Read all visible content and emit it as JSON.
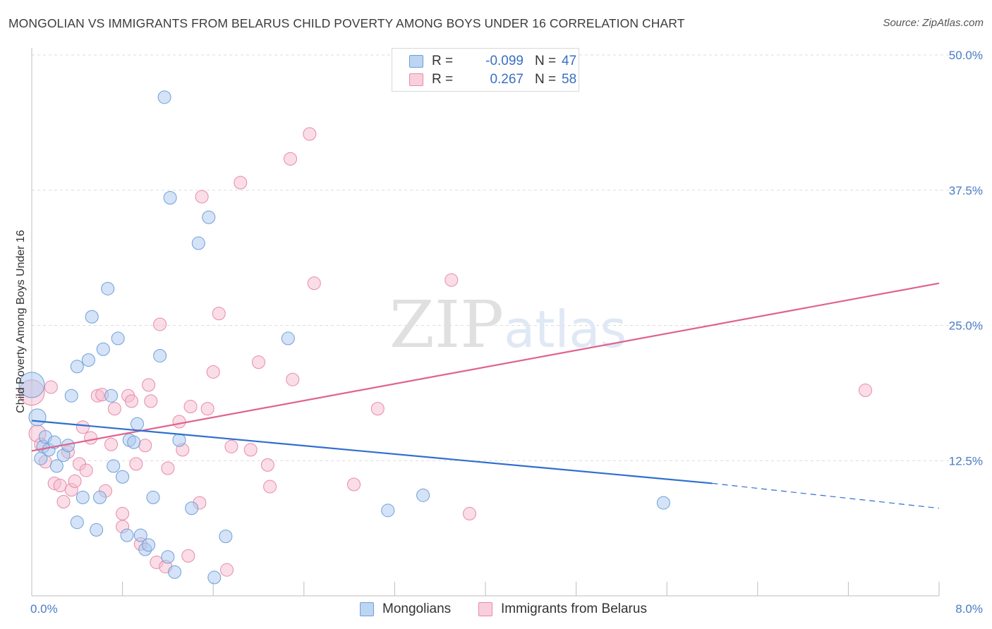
{
  "title": "MONGOLIAN VS IMMIGRANTS FROM BELARUS CHILD POVERTY AMONG BOYS UNDER 16 CORRELATION CHART",
  "source": "Source: ZipAtlas.com",
  "watermark": "ZIPatlas",
  "colors": {
    "blue_fill": "#a9c8ef",
    "blue_stroke": "#6f9fd8",
    "blue_line": "#2f6fcf",
    "pink_fill": "#f5bccd",
    "pink_stroke": "#e88aa8",
    "pink_line": "#e0628e",
    "tick_text": "#4a7cc7"
  },
  "legend_top": {
    "rows": [
      {
        "r_label": "R =",
        "r_value": "-0.099",
        "n_label": "N =",
        "n_value": "47"
      },
      {
        "r_label": "R =",
        "r_value": "0.267",
        "n_label": "N =",
        "n_value": "58"
      }
    ]
  },
  "legend_bottom": {
    "items": [
      {
        "label": "Mongolians"
      },
      {
        "label": "Immigrants from Belarus"
      }
    ]
  },
  "chart_data": {
    "type": "scatter",
    "title": "MONGOLIAN VS IMMIGRANTS FROM BELARUS CHILD POVERTY AMONG BOYS UNDER 16 CORRELATION CHART",
    "xlabel": "",
    "ylabel": "Child Poverty Among Boys Under 16",
    "xlim": [
      0,
      8
    ],
    "ylim": [
      0,
      50
    ],
    "x_tick_labels": [
      "0.0%",
      "8.0%"
    ],
    "y_tick_labels": [
      "12.5%",
      "25.0%",
      "37.5%",
      "50.0%"
    ],
    "y_ticks": [
      12.5,
      25,
      37.5,
      50
    ],
    "grid": true,
    "legend_position": "bottom",
    "series": [
      {
        "name": "Mongolians",
        "r": -0.099,
        "n": 47,
        "trend": {
          "x": [
            0,
            6
          ],
          "y": [
            16.2,
            10.4
          ],
          "dashed_to": [
            8,
            8.1
          ]
        },
        "points": [
          [
            0.0,
            19.5,
            18
          ],
          [
            0.05,
            16.5,
            12
          ],
          [
            0.08,
            12.7,
            9
          ],
          [
            0.1,
            13.8,
            9
          ],
          [
            0.12,
            14.7,
            9
          ],
          [
            0.15,
            13.5,
            9
          ],
          [
            0.2,
            14.2,
            9
          ],
          [
            0.22,
            12,
            9
          ],
          [
            0.28,
            13,
            9
          ],
          [
            0.32,
            13.9,
            9
          ],
          [
            0.35,
            18.5,
            9
          ],
          [
            0.4,
            21.2,
            9
          ],
          [
            0.45,
            9.1,
            9
          ],
          [
            0.5,
            21.8,
            9
          ],
          [
            0.4,
            6.8,
            9
          ],
          [
            0.53,
            25.8,
            9
          ],
          [
            0.57,
            6.1,
            9
          ],
          [
            0.6,
            9.1,
            9
          ],
          [
            0.63,
            22.8,
            9
          ],
          [
            0.67,
            28.4,
            9
          ],
          [
            0.7,
            18.5,
            9
          ],
          [
            0.72,
            12,
            9
          ],
          [
            0.76,
            23.8,
            9
          ],
          [
            0.8,
            11,
            9
          ],
          [
            0.84,
            5.6,
            9
          ],
          [
            0.86,
            14.4,
            9
          ],
          [
            0.9,
            14.2,
            9
          ],
          [
            0.93,
            15.9,
            9
          ],
          [
            0.96,
            5.6,
            9
          ],
          [
            1.0,
            4.3,
            9
          ],
          [
            1.03,
            4.7,
            9
          ],
          [
            1.07,
            9.1,
            9
          ],
          [
            1.13,
            22.2,
            9
          ],
          [
            1.17,
            46.1,
            9
          ],
          [
            1.2,
            3.6,
            9
          ],
          [
            1.22,
            36.8,
            9
          ],
          [
            1.26,
            2.2,
            9
          ],
          [
            1.3,
            14.4,
            9
          ],
          [
            1.41,
            8.1,
            9
          ],
          [
            1.47,
            32.6,
            9
          ],
          [
            1.56,
            35,
            9
          ],
          [
            1.61,
            1.7,
            9
          ],
          [
            1.71,
            5.5,
            9
          ],
          [
            2.26,
            23.8,
            9
          ],
          [
            3.14,
            7.9,
            9
          ],
          [
            3.45,
            9.3,
            9
          ],
          [
            5.57,
            8.6,
            9
          ]
        ]
      },
      {
        "name": "Immigrants from Belarus",
        "r": 0.267,
        "n": 58,
        "trend": {
          "x": [
            0,
            8
          ],
          "y": [
            13.4,
            28.9
          ]
        },
        "points": [
          [
            0.0,
            18.8,
            18
          ],
          [
            0.05,
            15,
            12
          ],
          [
            0.08,
            14,
            9
          ],
          [
            0.12,
            12.4,
            9
          ],
          [
            0.17,
            19.3,
            9
          ],
          [
            0.2,
            10.4,
            9
          ],
          [
            0.25,
            10.2,
            9
          ],
          [
            0.28,
            8.7,
            9
          ],
          [
            0.32,
            13.3,
            9
          ],
          [
            0.35,
            9.8,
            9
          ],
          [
            0.38,
            10.6,
            9
          ],
          [
            0.42,
            12.2,
            9
          ],
          [
            0.45,
            15.6,
            9
          ],
          [
            0.48,
            11.6,
            9
          ],
          [
            0.52,
            14.6,
            9
          ],
          [
            0.58,
            18.5,
            9
          ],
          [
            0.62,
            18.6,
            9
          ],
          [
            0.65,
            9.7,
            9
          ],
          [
            0.7,
            14,
            9
          ],
          [
            0.73,
            17.3,
            9
          ],
          [
            0.8,
            7.6,
            9
          ],
          [
            0.8,
            6.4,
            9
          ],
          [
            0.85,
            18.5,
            9
          ],
          [
            0.88,
            18,
            9
          ],
          [
            0.92,
            12.2,
            9
          ],
          [
            0.96,
            4.8,
            9
          ],
          [
            1.0,
            13.9,
            9
          ],
          [
            1.03,
            19.5,
            9
          ],
          [
            1.05,
            18,
            9
          ],
          [
            1.1,
            3.1,
            9
          ],
          [
            1.13,
            25.1,
            9
          ],
          [
            1.18,
            2.7,
            9
          ],
          [
            1.2,
            11.8,
            9
          ],
          [
            1.3,
            16.1,
            9
          ],
          [
            1.33,
            13.5,
            9
          ],
          [
            1.38,
            3.7,
            9
          ],
          [
            1.4,
            17.5,
            9
          ],
          [
            1.48,
            8.6,
            9
          ],
          [
            1.5,
            36.9,
            9
          ],
          [
            1.55,
            17.3,
            9
          ],
          [
            1.6,
            20.7,
            9
          ],
          [
            1.65,
            26.1,
            9
          ],
          [
            1.72,
            2.4,
            9
          ],
          [
            1.76,
            13.8,
            9
          ],
          [
            1.84,
            38.2,
            9
          ],
          [
            1.93,
            13.5,
            9
          ],
          [
            2.0,
            21.6,
            9
          ],
          [
            2.08,
            12.1,
            9
          ],
          [
            2.1,
            10.1,
            9
          ],
          [
            2.28,
            40.4,
            9
          ],
          [
            2.3,
            20,
            9
          ],
          [
            2.45,
            42.7,
            9
          ],
          [
            2.49,
            28.9,
            9
          ],
          [
            2.84,
            10.3,
            9
          ],
          [
            3.05,
            17.3,
            9
          ],
          [
            3.7,
            29.2,
            9
          ],
          [
            3.86,
            7.6,
            9
          ],
          [
            7.35,
            19,
            9
          ]
        ]
      }
    ]
  }
}
